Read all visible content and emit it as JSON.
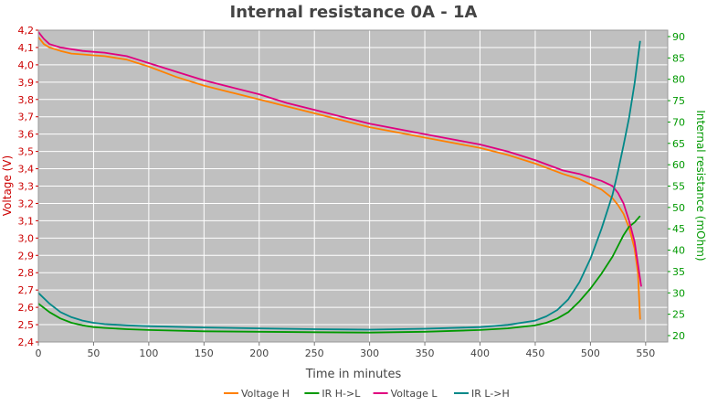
{
  "chart_data": {
    "type": "line",
    "title": "Internal resistance  0A - 1A",
    "xlabel": "Time in minutes",
    "ylabel_left": "Voltage (V)",
    "ylabel_right": "Internal resistance (mOhm)",
    "xlim": [
      0,
      570
    ],
    "ylim_left": [
      2.4,
      4.2
    ],
    "ylim_right": [
      18.5,
      91.5
    ],
    "x_ticks": [
      "0",
      "50",
      "100",
      "150",
      "200",
      "250",
      "300",
      "350",
      "400",
      "450",
      "500",
      "550"
    ],
    "y_left_ticks": [
      "2,4",
      "2,5",
      "2,6",
      "2,7",
      "2,8",
      "2,9",
      "3,0",
      "3,1",
      "3,2",
      "3,3",
      "3,4",
      "3,5",
      "3,6",
      "3,7",
      "3,8",
      "3,9",
      "4,0",
      "4,1",
      "4,2"
    ],
    "y_right_ticks": [
      "20",
      "25",
      "30",
      "35",
      "40",
      "45",
      "50",
      "55",
      "60",
      "65",
      "70",
      "75",
      "80",
      "85",
      "90"
    ],
    "grid": true,
    "legend_position": "bottom",
    "colors": {
      "left_axis": "#cc0000",
      "right_axis": "#009900",
      "plot_bg": "#c0c0c0",
      "grid": "#ffffff"
    },
    "series": [
      {
        "name": "Voltage H",
        "axis": "left",
        "color": "#ff8000",
        "x": [
          0,
          5,
          10,
          20,
          30,
          40,
          50,
          60,
          70,
          80,
          90,
          100,
          125,
          150,
          175,
          200,
          225,
          250,
          275,
          300,
          325,
          350,
          375,
          400,
          425,
          450,
          475,
          490,
          500,
          510,
          520,
          525,
          530,
          535,
          540,
          543,
          545
        ],
        "y": [
          4.16,
          4.12,
          4.1,
          4.08,
          4.065,
          4.06,
          4.055,
          4.05,
          4.04,
          4.03,
          4.01,
          3.99,
          3.93,
          3.88,
          3.84,
          3.8,
          3.76,
          3.72,
          3.68,
          3.64,
          3.61,
          3.58,
          3.55,
          3.52,
          3.48,
          3.43,
          3.37,
          3.34,
          3.31,
          3.28,
          3.23,
          3.19,
          3.14,
          3.06,
          2.94,
          2.8,
          2.53
        ]
      },
      {
        "name": "IR H->L",
        "axis": "right",
        "color": "#009900",
        "x": [
          0,
          10,
          20,
          30,
          40,
          50,
          60,
          80,
          100,
          150,
          200,
          250,
          300,
          350,
          400,
          425,
          450,
          460,
          470,
          480,
          490,
          500,
          510,
          520,
          525,
          530,
          535,
          540,
          545
        ],
        "y": [
          27.5,
          25.5,
          24.0,
          23.0,
          22.4,
          22.0,
          21.8,
          21.5,
          21.3,
          21.0,
          20.9,
          20.8,
          20.7,
          20.9,
          21.3,
          21.7,
          22.4,
          23.0,
          24.0,
          25.5,
          28.0,
          31.0,
          34.5,
          38.5,
          41.0,
          43.5,
          45.5,
          46.5,
          48.0
        ]
      },
      {
        "name": "Voltage L",
        "axis": "left",
        "color": "#e0007f",
        "x": [
          0,
          5,
          10,
          20,
          30,
          40,
          50,
          60,
          70,
          80,
          90,
          100,
          125,
          150,
          175,
          200,
          225,
          250,
          275,
          300,
          325,
          350,
          375,
          400,
          425,
          450,
          475,
          490,
          500,
          510,
          520,
          525,
          530,
          535,
          540,
          543,
          546
        ],
        "y": [
          4.19,
          4.15,
          4.12,
          4.1,
          4.09,
          4.08,
          4.075,
          4.07,
          4.06,
          4.05,
          4.03,
          4.01,
          3.96,
          3.91,
          3.87,
          3.83,
          3.78,
          3.74,
          3.7,
          3.66,
          3.63,
          3.6,
          3.57,
          3.54,
          3.5,
          3.45,
          3.39,
          3.37,
          3.35,
          3.33,
          3.3,
          3.26,
          3.2,
          3.1,
          2.98,
          2.85,
          2.72
        ]
      },
      {
        "name": "IR L->H",
        "axis": "right",
        "color": "#008888",
        "x": [
          0,
          10,
          20,
          30,
          40,
          50,
          60,
          80,
          100,
          150,
          200,
          250,
          300,
          350,
          400,
          425,
          450,
          460,
          470,
          480,
          490,
          500,
          510,
          520,
          525,
          530,
          535,
          540,
          545
        ],
        "y": [
          30.0,
          27.5,
          25.5,
          24.3,
          23.5,
          23.0,
          22.7,
          22.4,
          22.2,
          21.9,
          21.7,
          21.5,
          21.4,
          21.6,
          22.0,
          22.5,
          23.5,
          24.5,
          26.0,
          28.5,
          32.5,
          38.0,
          45.0,
          53.0,
          58.5,
          64.5,
          71.0,
          79.0,
          89.0
        ]
      }
    ]
  }
}
